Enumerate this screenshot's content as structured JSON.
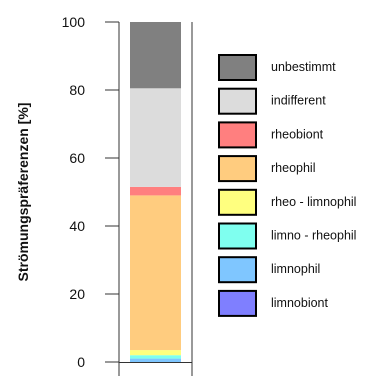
{
  "chart_data": {
    "type": "bar",
    "stacked": true,
    "categories": [
      ""
    ],
    "ylabel": "Strömungspräferenzen [%]",
    "ylim": [
      0,
      100
    ],
    "yticks": [
      "0",
      "20",
      "40",
      "60",
      "80",
      "100"
    ],
    "legend_position": "right",
    "series": [
      {
        "name": "limnobiont",
        "values": [
          0
        ],
        "color": "#7f7fff"
      },
      {
        "name": "limnophil",
        "values": [
          1.0
        ],
        "color": "#7fc6ff"
      },
      {
        "name": "limno - rheophil",
        "values": [
          1.0
        ],
        "color": "#7fffef"
      },
      {
        "name": "rheo - limnophil",
        "values": [
          1.5
        ],
        "color": "#ffff7f"
      },
      {
        "name": "rheophil",
        "values": [
          45.5
        ],
        "color": "#ffcc7f"
      },
      {
        "name": "rheobiont",
        "values": [
          2.5
        ],
        "color": "#ff7f7f"
      },
      {
        "name": "indifferent",
        "values": [
          29.0
        ],
        "color": "#dcdcdc"
      },
      {
        "name": "unbestimmt",
        "values": [
          19.5
        ],
        "color": "#808080"
      }
    ],
    "legend_order": [
      "unbestimmt",
      "indifferent",
      "rheobiont",
      "rheophil",
      "rheo - limnophil",
      "limno - rheophil",
      "limnophil",
      "limnobiont"
    ]
  }
}
